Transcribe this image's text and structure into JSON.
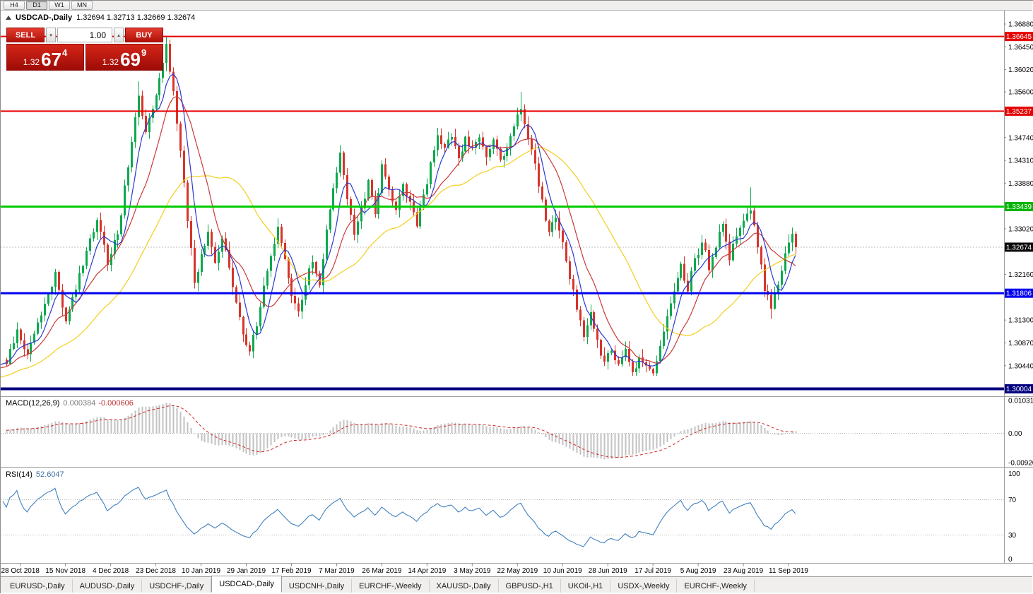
{
  "toolbar": {
    "timeframes": [
      {
        "label": "H4",
        "active": false
      },
      {
        "label": "D1",
        "active": true
      },
      {
        "label": "W1",
        "active": false
      },
      {
        "label": "MN",
        "active": false
      }
    ]
  },
  "title": {
    "symbol": "USDCAD-,Daily",
    "quotes": "1.32694 1.32713 1.32669 1.32674"
  },
  "trade_panel": {
    "sell_label": "SELL",
    "buy_label": "BUY",
    "volume": "1.00",
    "bid": {
      "prefix": "1.32",
      "big": "67",
      "sup": "4"
    },
    "ask": {
      "prefix": "1.32",
      "big": "69",
      "sup": "9"
    }
  },
  "price_axis": {
    "labels": [
      "1.36880",
      "1.36450",
      "1.36020",
      "1.35600",
      "1.35170",
      "1.34740",
      "1.34310",
      "1.33880",
      "1.33450",
      "1.33020",
      "1.32590",
      "1.32160",
      "1.31730",
      "1.31300",
      "1.30870",
      "1.30440",
      "1.30010"
    ],
    "badges": [
      {
        "text": "1.36645",
        "price": 1.36645,
        "bg": "#e60000"
      },
      {
        "text": "1.35237",
        "price": 1.35237,
        "bg": "#e60000"
      },
      {
        "text": "1.33439",
        "price": 1.33439,
        "bg": "#00b400"
      },
      {
        "text": "1.32674",
        "price": 1.32674,
        "bg": "#0a0a0a"
      },
      {
        "text": "1.31806",
        "price": 1.31806,
        "bg": "#0000ee"
      },
      {
        "text": "1.30004",
        "price": 1.30004,
        "bg": "#00007f"
      }
    ]
  },
  "macd": {
    "name": "MACD(12,26,9)",
    "value1": "0.000384",
    "value2": "-0.000606",
    "axis": [
      {
        "text": "0.010311",
        "v": 0.010311
      },
      {
        "text": "0.00",
        "v": 0
      },
      {
        "text": "-0.009203",
        "v": -0.009203
      }
    ],
    "max": 0.010311,
    "min": -0.009203
  },
  "rsi": {
    "name": "RSI(14)",
    "value": "52.6047",
    "axis": [
      {
        "text": "100",
        "v": 100
      },
      {
        "text": "70",
        "v": 70
      },
      {
        "text": "30",
        "v": 30
      },
      {
        "text": "0",
        "v": 0
      }
    ],
    "levels": [
      70,
      30
    ]
  },
  "date_axis": [
    "28 Oct 2018",
    "15 Nov 2018",
    "4 Dec 2018",
    "23 Dec 2018",
    "10 Jan 2019",
    "29 Jan 2019",
    "17 Feb 2019",
    "7 Mar 2019",
    "26 Mar 2019",
    "14 Apr 2019",
    "3 May 2019",
    "22 May 2019",
    "10 Jun 2019",
    "28 Jun 2019",
    "17 Jul 2019",
    "5 Aug 2019",
    "23 Aug 2019",
    "11 Sep 2019"
  ],
  "tabs": [
    {
      "label": "EURUSD-,Daily",
      "active": false
    },
    {
      "label": "AUDUSD-,Daily",
      "active": false
    },
    {
      "label": "USDCHF-,Daily",
      "active": false
    },
    {
      "label": "USDCAD-,Daily",
      "active": true
    },
    {
      "label": "USDCNH-,Daily",
      "active": false
    },
    {
      "label": "EURCHF-,Weekly",
      "active": false
    },
    {
      "label": "XAUUSD-,Daily",
      "active": false
    },
    {
      "label": "GBPUSD-,H1",
      "active": false
    },
    {
      "label": "UKOil-,H1",
      "active": false
    },
    {
      "label": "USDX-,Weekly",
      "active": false
    },
    {
      "label": "EURCHF-,Weekly",
      "active": false
    }
  ],
  "chart_data": {
    "type": "candlestick",
    "symbol": "USDCAD",
    "timeframe": "Daily",
    "visible_range": {
      "start": "28 Oct 2018",
      "end": "20 Sep 2019"
    },
    "y_range": [
      1.299,
      1.3695
    ],
    "candle_count": 228,
    "last_close": 1.32674,
    "anchors": [
      [
        0,
        1.3055
      ],
      [
        3,
        1.3105
      ],
      [
        6,
        1.307
      ],
      [
        10,
        1.3135
      ],
      [
        14,
        1.322
      ],
      [
        17,
        1.313
      ],
      [
        20,
        1.319
      ],
      [
        23,
        1.3255
      ],
      [
        26,
        1.332
      ],
      [
        29,
        1.324
      ],
      [
        32,
        1.329
      ],
      [
        35,
        1.342
      ],
      [
        38,
        1.356
      ],
      [
        40,
        1.348
      ],
      [
        42,
        1.353
      ],
      [
        44,
        1.359
      ],
      [
        46,
        1.365
      ],
      [
        48,
        1.356
      ],
      [
        50,
        1.345
      ],
      [
        52,
        1.332
      ],
      [
        54,
        1.32
      ],
      [
        56,
        1.325
      ],
      [
        58,
        1.33
      ],
      [
        60,
        1.324
      ],
      [
        62,
        1.329
      ],
      [
        64,
        1.323
      ],
      [
        66,
        1.316
      ],
      [
        68,
        1.31
      ],
      [
        70,
        1.307
      ],
      [
        72,
        1.312
      ],
      [
        74,
        1.319
      ],
      [
        76,
        1.325
      ],
      [
        78,
        1.33
      ],
      [
        80,
        1.324
      ],
      [
        82,
        1.318
      ],
      [
        84,
        1.314
      ],
      [
        86,
        1.32
      ],
      [
        88,
        1.324
      ],
      [
        90,
        1.319
      ],
      [
        92,
        1.33
      ],
      [
        94,
        1.338
      ],
      [
        96,
        1.344
      ],
      [
        98,
        1.336
      ],
      [
        100,
        1.329
      ],
      [
        102,
        1.334
      ],
      [
        104,
        1.339
      ],
      [
        106,
        1.333
      ],
      [
        108,
        1.342
      ],
      [
        110,
        1.338
      ],
      [
        112,
        1.334
      ],
      [
        114,
        1.339
      ],
      [
        116,
        1.335
      ],
      [
        118,
        1.331
      ],
      [
        120,
        1.336
      ],
      [
        122,
        1.342
      ],
      [
        124,
        1.348
      ],
      [
        126,
        1.345
      ],
      [
        128,
        1.348
      ],
      [
        130,
        1.344
      ],
      [
        132,
        1.347
      ],
      [
        134,
        1.345
      ],
      [
        136,
        1.348
      ],
      [
        138,
        1.344
      ],
      [
        140,
        1.347
      ],
      [
        142,
        1.343
      ],
      [
        144,
        1.346
      ],
      [
        146,
        1.349
      ],
      [
        148,
        1.353
      ],
      [
        150,
        1.347
      ],
      [
        152,
        1.342
      ],
      [
        154,
        1.335
      ],
      [
        156,
        1.329
      ],
      [
        158,
        1.333
      ],
      [
        160,
        1.327
      ],
      [
        162,
        1.321
      ],
      [
        164,
        1.315
      ],
      [
        166,
        1.31
      ],
      [
        168,
        1.315
      ],
      [
        170,
        1.309
      ],
      [
        172,
        1.305
      ],
      [
        174,
        1.308
      ],
      [
        176,
        1.304
      ],
      [
        178,
        1.307
      ],
      [
        180,
        1.303
      ],
      [
        182,
        1.306
      ],
      [
        184,
        1.304
      ],
      [
        186,
        1.303
      ],
      [
        188,
        1.308
      ],
      [
        190,
        1.313
      ],
      [
        192,
        1.318
      ],
      [
        194,
        1.323
      ],
      [
        196,
        1.319
      ],
      [
        198,
        1.324
      ],
      [
        200,
        1.328
      ],
      [
        202,
        1.323
      ],
      [
        204,
        1.327
      ],
      [
        206,
        1.331
      ],
      [
        208,
        1.325
      ],
      [
        210,
        1.329
      ],
      [
        212,
        1.332
      ],
      [
        214,
        1.334
      ],
      [
        216,
        1.327
      ],
      [
        218,
        1.319
      ],
      [
        220,
        1.315
      ],
      [
        222,
        1.32
      ],
      [
        224,
        1.325
      ],
      [
        226,
        1.329
      ],
      [
        227,
        1.32674
      ]
    ],
    "forced_highs": [
      [
        38,
        1.358
      ],
      [
        46,
        1.36648
      ],
      [
        148,
        1.356
      ],
      [
        214,
        1.338
      ]
    ],
    "forced_lows": [
      [
        70,
        1.3063
      ],
      [
        180,
        1.3028
      ],
      [
        186,
        1.3026
      ],
      [
        220,
        1.3132
      ]
    ],
    "hlines": [
      {
        "price": 1.36645,
        "color": "#e60000",
        "w": 2
      },
      {
        "price": 1.35237,
        "color": "#e60000",
        "w": 2
      },
      {
        "price": 1.33439,
        "color": "#00cc00",
        "w": 3
      },
      {
        "price": 1.31806,
        "color": "#0000ee",
        "w": 3
      },
      {
        "price": 1.30004,
        "color": "#00007f",
        "w": 4
      }
    ],
    "current_price": 1.32674,
    "overlays": [
      {
        "type": "sma",
        "period": 34,
        "color": "#f2cf1d"
      },
      {
        "type": "sma",
        "period": 13,
        "color": "#c93a3a"
      },
      {
        "type": "sma",
        "period": 6,
        "color": "#2b38cf"
      }
    ],
    "colors": {
      "up": "#0ca94f",
      "down": "#d8342c",
      "macd_hist": "#c2c2c2",
      "macd_signal": "#cc2525",
      "rsi_line": "#4080bf"
    }
  }
}
